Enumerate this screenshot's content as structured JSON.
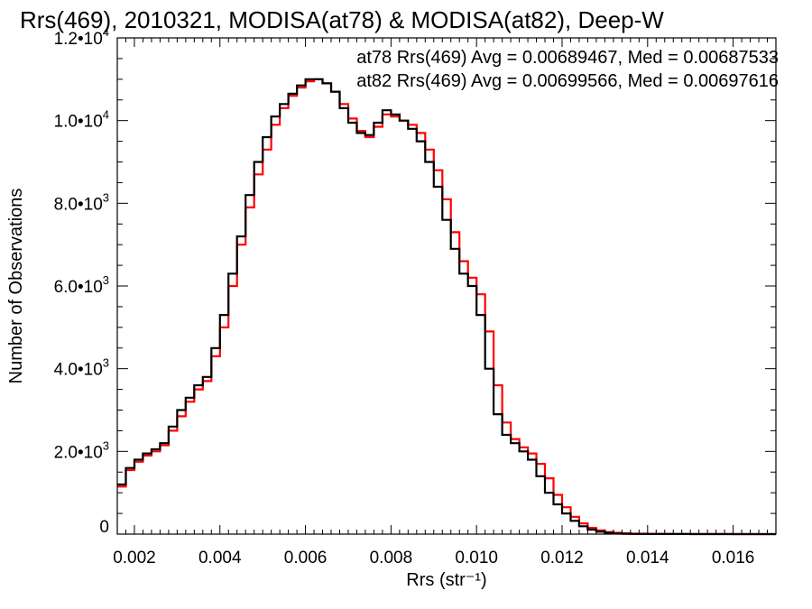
{
  "chart_data": {
    "type": "line",
    "title": "Rrs(469), 2010321, MODISA(at78) & MODISA(at82), Deep-W",
    "xlabel": "Rrs (str⁻¹)",
    "ylabel": "Number of Observations",
    "xlim": [
      0.0016,
      0.017
    ],
    "ylim": [
      0,
      12000
    ],
    "x_ticks": [
      0.002,
      0.004,
      0.006,
      0.008,
      0.01,
      0.012,
      0.014,
      0.016
    ],
    "x_tick_labels": [
      "0.002",
      "0.004",
      "0.006",
      "0.008",
      "0.010",
      "0.012",
      "0.014",
      "0.016"
    ],
    "y_ticks": [
      0,
      2000,
      4000,
      6000,
      8000,
      10000,
      12000
    ],
    "y_tick_labels": [
      {
        "mantissa": "0",
        "exponent": ""
      },
      {
        "mantissa": "2.0•10",
        "exponent": "3"
      },
      {
        "mantissa": "4.0•10",
        "exponent": "3"
      },
      {
        "mantissa": "6.0•10",
        "exponent": "3"
      },
      {
        "mantissa": "8.0•10",
        "exponent": "3"
      },
      {
        "mantissa": "1.0•10",
        "exponent": "4"
      },
      {
        "mantissa": "1.2•10",
        "exponent": "4"
      }
    ],
    "grid": false,
    "legend_position": "top-right",
    "annotations": [
      "at78 Rrs(469) Avg = 0.00689467, Med = 0.00687533",
      "at82 Rrs(469) Avg = 0.00699566, Med = 0.00697616"
    ],
    "series": [
      {
        "color": "#000000",
        "x": [
          0.0016,
          0.0018,
          0.002,
          0.0022,
          0.0024,
          0.0026,
          0.0028,
          0.003,
          0.0032,
          0.0034,
          0.0036,
          0.0038,
          0.004,
          0.0042,
          0.0044,
          0.0046,
          0.0048,
          0.005,
          0.0052,
          0.0054,
          0.0056,
          0.0058,
          0.006,
          0.0062,
          0.0064,
          0.0066,
          0.0068,
          0.007,
          0.0072,
          0.0074,
          0.0076,
          0.0078,
          0.008,
          0.0082,
          0.0084,
          0.0086,
          0.0088,
          0.009,
          0.0092,
          0.0094,
          0.0096,
          0.0098,
          0.01,
          0.0102,
          0.0104,
          0.0106,
          0.0108,
          0.011,
          0.0112,
          0.0114,
          0.0116,
          0.0118,
          0.012,
          0.0122,
          0.0124,
          0.0126,
          0.0128,
          0.013,
          0.0132,
          0.0134,
          0.0136,
          0.014,
          0.0145,
          0.015,
          0.016,
          0.017
        ],
        "y": [
          1200,
          1600,
          1800,
          1950,
          2050,
          2200,
          2600,
          3000,
          3300,
          3600,
          3800,
          4500,
          5300,
          6300,
          7200,
          8200,
          9000,
          9600,
          10100,
          10400,
          10650,
          10850,
          11000,
          11000,
          10900,
          10700,
          10300,
          9950,
          9700,
          9650,
          9950,
          10250,
          10150,
          10000,
          9800,
          9500,
          9000,
          8400,
          7600,
          6900,
          6300,
          6000,
          5300,
          4000,
          2900,
          2400,
          2200,
          2000,
          1800,
          1400,
          1000,
          720,
          500,
          320,
          190,
          110,
          60,
          30,
          15,
          8,
          5,
          3,
          2,
          1,
          0,
          0
        ]
      },
      {
        "color": "#ff0000",
        "x": [
          0.0016,
          0.0018,
          0.002,
          0.0022,
          0.0024,
          0.0026,
          0.0028,
          0.003,
          0.0032,
          0.0034,
          0.0036,
          0.0038,
          0.004,
          0.0042,
          0.0044,
          0.0046,
          0.0048,
          0.005,
          0.0052,
          0.0054,
          0.0056,
          0.0058,
          0.006,
          0.0062,
          0.0064,
          0.0066,
          0.0068,
          0.007,
          0.0072,
          0.0074,
          0.0076,
          0.0078,
          0.008,
          0.0082,
          0.0084,
          0.0086,
          0.0088,
          0.009,
          0.0092,
          0.0094,
          0.0096,
          0.0098,
          0.01,
          0.0102,
          0.0104,
          0.0106,
          0.0108,
          0.011,
          0.0112,
          0.0114,
          0.0116,
          0.0118,
          0.012,
          0.0122,
          0.0124,
          0.0126,
          0.0128,
          0.013,
          0.0132,
          0.0134,
          0.0136,
          0.014,
          0.0145,
          0.015,
          0.016,
          0.017
        ],
        "y": [
          1150,
          1550,
          1750,
          1900,
          2000,
          2150,
          2500,
          2850,
          3200,
          3500,
          3700,
          4300,
          5000,
          6000,
          7000,
          7900,
          8700,
          9300,
          9900,
          10300,
          10600,
          10800,
          10950,
          11000,
          10900,
          10700,
          10400,
          10050,
          9750,
          9600,
          9850,
          10150,
          10100,
          10000,
          9900,
          9700,
          9300,
          8800,
          8100,
          7300,
          6600,
          6200,
          5800,
          4900,
          3600,
          2700,
          2300,
          2100,
          1950,
          1700,
          1350,
          950,
          650,
          420,
          260,
          150,
          90,
          50,
          30,
          20,
          12,
          7,
          4,
          2,
          0,
          0
        ]
      }
    ]
  }
}
